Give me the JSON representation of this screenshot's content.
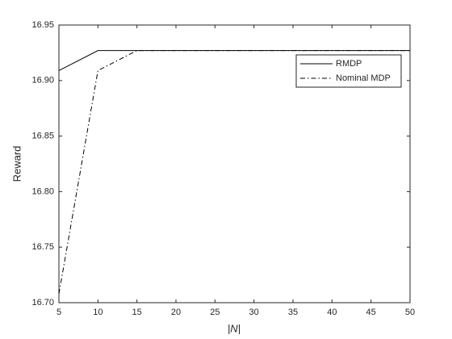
{
  "chart_data": {
    "type": "line",
    "x_label": "|N|",
    "y_label": "Reward",
    "x": [
      5,
      10,
      15,
      20,
      25,
      30,
      35,
      40,
      45,
      50
    ],
    "series": [
      {
        "name": "RMDP",
        "color": "#000000",
        "style": "solid",
        "values": [
          16.909,
          16.927,
          16.927,
          16.927,
          16.927,
          16.927,
          16.927,
          16.927,
          16.927,
          16.927
        ]
      },
      {
        "name": "Nominal MDP",
        "color": "#000000",
        "style": "dashdot",
        "values": [
          16.708,
          16.909,
          16.927,
          16.927,
          16.927,
          16.927,
          16.927,
          16.927,
          16.927,
          16.927
        ]
      }
    ],
    "xlim": [
      5,
      50
    ],
    "xticks": [
      5,
      10,
      15,
      20,
      25,
      30,
      35,
      40,
      45,
      50
    ],
    "ylim": [
      16.7,
      16.95
    ],
    "yticks": [
      {
        "value": 16.7,
        "label": "16.70"
      },
      16.75,
      {
        "value": 16.8,
        "label": "16.80"
      },
      16.85,
      {
        "value": 16.9,
        "label": "16.90"
      },
      16.95
    ],
    "legend": "upper-right",
    "grid": false
  }
}
